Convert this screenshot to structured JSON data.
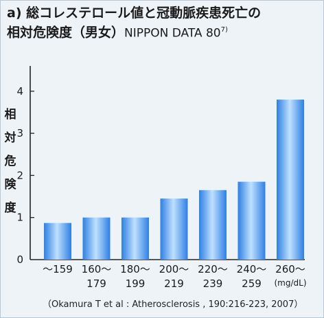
{
  "title": {
    "prefix": "a)",
    "line1": "総コレステロール値と冠動脈疾患死亡の",
    "line2": "相対危険度（男女）",
    "sub": "NIPPON DATA 80",
    "sup": "7)"
  },
  "chart_data": {
    "type": "bar",
    "ylabel": "相対危険度",
    "ylim": [
      0,
      4
    ],
    "yticks": [
      "0",
      "1",
      "2",
      "3",
      "4"
    ],
    "categories": [
      {
        "line1": "〜159",
        "line2": ""
      },
      {
        "line1": "160〜",
        "line2": "179"
      },
      {
        "line1": "180〜",
        "line2": "199"
      },
      {
        "line1": "200〜",
        "line2": "219"
      },
      {
        "line1": "220〜",
        "line2": "239"
      },
      {
        "line1": "240〜",
        "line2": "259"
      },
      {
        "line1": "260〜",
        "line2": ""
      }
    ],
    "values": [
      0.87,
      1.0,
      1.0,
      1.45,
      1.65,
      1.85,
      3.8
    ],
    "unit": "(mg/dL)",
    "bar_color": "#2e7fe3",
    "bar_highlight": "#bfe0ff",
    "grid": false
  },
  "source": "（Okamura T et al : Atherosclerosis , 190:216-223, 2007）"
}
